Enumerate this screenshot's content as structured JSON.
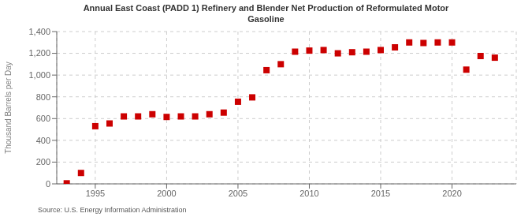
{
  "chart_data": {
    "type": "scatter",
    "title": "Annual East Coast (PADD 1) Refinery and Blender Net Production of Reformulated Motor\nGasoline",
    "ylabel": "Thousand Barrels per Day",
    "annotations": [
      "Source: U.S. Energy Information Administration"
    ],
    "color": "#cc0000",
    "marker": "square",
    "line_style": "none",
    "grid": true,
    "x": [
      1993,
      1994,
      1995,
      1996,
      1997,
      1998,
      1999,
      2000,
      2001,
      2002,
      2003,
      2004,
      2005,
      2006,
      2007,
      2008,
      2009,
      2010,
      2011,
      2012,
      2013,
      2014,
      2015,
      2016,
      2017,
      2018,
      2019,
      2020,
      2021,
      2022,
      2023
    ],
    "values": [
      5,
      100,
      530,
      555,
      620,
      620,
      640,
      615,
      620,
      620,
      640,
      655,
      755,
      795,
      1045,
      1100,
      1215,
      1225,
      1230,
      1200,
      1210,
      1215,
      1230,
      1255,
      1300,
      1295,
      1300,
      1300,
      1050,
      1175,
      1160
    ],
    "xlim": [
      1992.3,
      2024.5
    ],
    "xticks": [
      1995,
      2000,
      2005,
      2010,
      2015,
      2020
    ],
    "ylim": [
      0,
      1400
    ],
    "yticks": [
      0,
      200,
      400,
      600,
      800,
      {
        "value": 1000,
        "label": "1,000"
      },
      {
        "value": 1200,
        "label": "1,200"
      },
      {
        "value": 1400,
        "label": "1,400"
      }
    ]
  }
}
